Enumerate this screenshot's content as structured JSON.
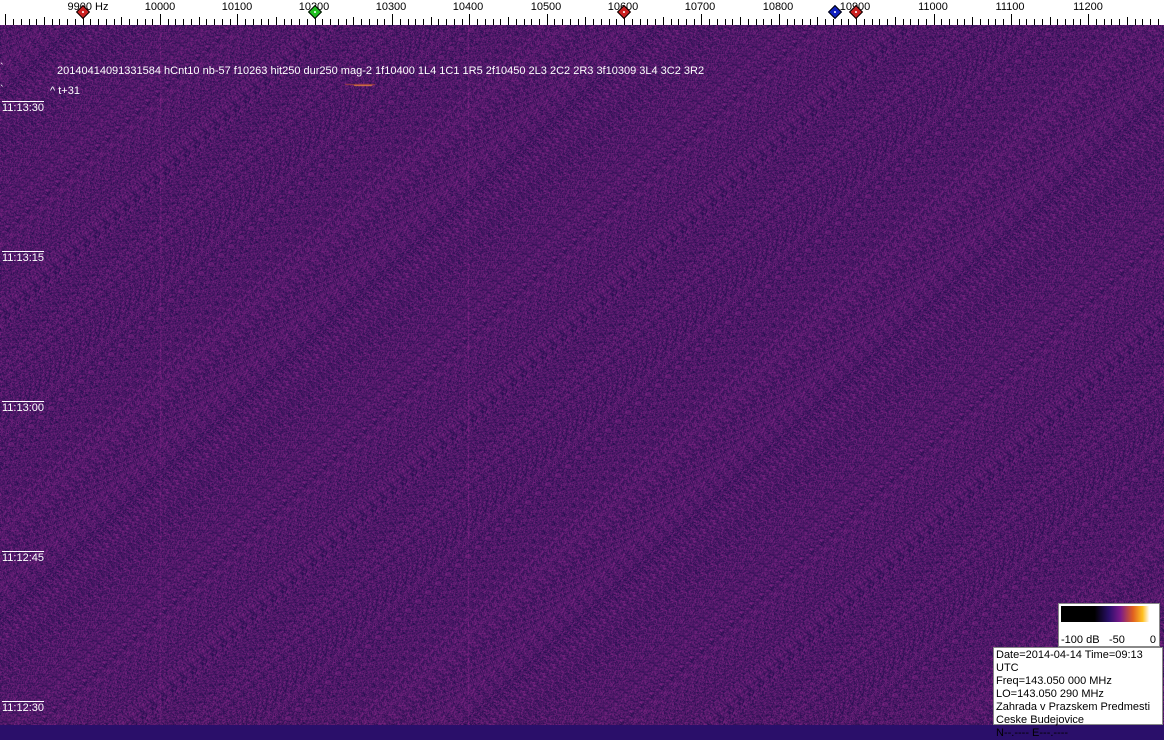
{
  "scale": {
    "unit_label": "9900 Hz",
    "labels": [
      "9900 Hz",
      "10000",
      "10100",
      "10200",
      "10300",
      "10400",
      "10500",
      "10600",
      "10700",
      "10800",
      "10900",
      "11000",
      "11100",
      "11200"
    ],
    "markers": [
      {
        "freq": 9900,
        "color": "#cc2020"
      },
      {
        "freq": 10200,
        "color": "#20c020"
      },
      {
        "freq": 10600,
        "color": "#cc2020"
      },
      {
        "freq": 10873,
        "color": "#1020c0"
      },
      {
        "freq": 10900,
        "color": "#cc2020"
      }
    ]
  },
  "detection": {
    "line": "20140414091331584 hCnt10 nb-57 f10263 hit250 dur250 mag-2 1f10400 1L4 1C1 1R5 2f10450 2L3 2C2 2R3 3f10309 3L4 3C2 3R2",
    "offset": "^ t+31"
  },
  "times": [
    "11:13:30",
    "11:13:15",
    "11:13:00",
    "11:12:45",
    "11:12:30"
  ],
  "legend": {
    "labels": [
      "-100 dB",
      "-50",
      "0"
    ]
  },
  "info": {
    "lines": [
      "Date=2014-04-14 Time=09:13 UTC",
      "Freq=143.050 000 MHz",
      "LO=143.050 290 MHz",
      "Zahrada v Prazskem Predmesti",
      "Ceske Budejovice",
      "N--.---- E---.----"
    ]
  },
  "colors": {
    "background": "#2a0f6a",
    "noise": "#8a2a8a"
  }
}
